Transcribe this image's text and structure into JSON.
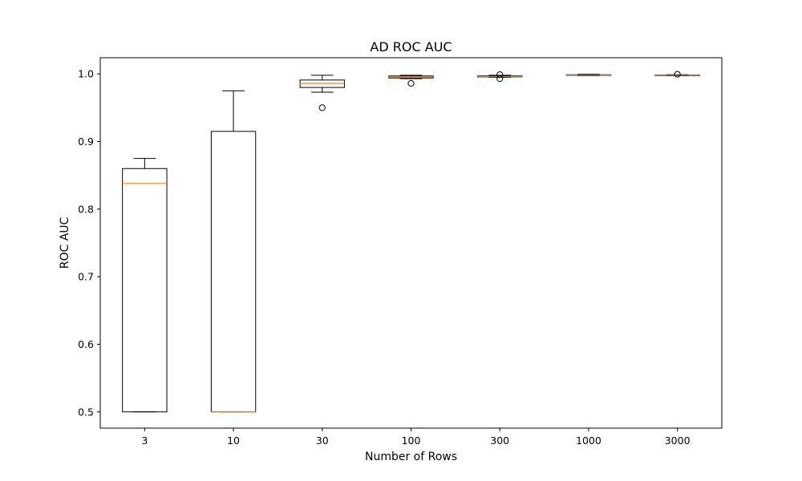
{
  "chart_data": {
    "type": "box",
    "title": "AD ROC AUC",
    "xlabel": "Number of Rows",
    "ylabel": "ROC AUC",
    "categories": [
      "3",
      "10",
      "30",
      "100",
      "300",
      "1000",
      "3000"
    ],
    "yticks": [
      "0.5",
      "0.6",
      "0.7",
      "0.8",
      "0.9",
      "1.0"
    ],
    "ytick_values": [
      0.5,
      0.6,
      0.7,
      0.8,
      0.9,
      1.0
    ],
    "ylim": [
      0.476,
      1.024
    ],
    "grid": false,
    "boxes": [
      {
        "category": "3",
        "whisker_low": 0.5,
        "q1": 0.5,
        "median": 0.838,
        "q3": 0.86,
        "whisker_high": 0.875,
        "fliers": []
      },
      {
        "category": "10",
        "whisker_low": 0.5,
        "q1": 0.5,
        "median": 0.5,
        "q3": 0.915,
        "whisker_high": 0.975,
        "fliers": []
      },
      {
        "category": "30",
        "whisker_low": 0.973,
        "q1": 0.98,
        "median": 0.986,
        "q3": 0.991,
        "whisker_high": 0.998,
        "fliers": [
          0.95
        ]
      },
      {
        "category": "100",
        "whisker_low": 0.993,
        "q1": 0.994,
        "median": 0.9955,
        "q3": 0.997,
        "whisker_high": 0.998,
        "fliers": [
          0.986
        ]
      },
      {
        "category": "300",
        "whisker_low": 0.995,
        "q1": 0.9955,
        "median": 0.996,
        "q3": 0.997,
        "whisker_high": 0.998,
        "fliers": [
          0.993,
          0.999
        ]
      },
      {
        "category": "1000",
        "whisker_low": 0.9975,
        "q1": 0.998,
        "median": 0.9983,
        "q3": 0.9988,
        "whisker_high": 0.9995,
        "fliers": []
      },
      {
        "category": "3000",
        "whisker_low": 0.9975,
        "q1": 0.998,
        "median": 0.9983,
        "q3": 0.9986,
        "whisker_high": 0.999,
        "fliers": [
          0.9995
        ]
      }
    ],
    "colors": {
      "box": "#000000",
      "median": "#ff7f0e",
      "flier": "#000000",
      "axes": "#000000"
    }
  }
}
